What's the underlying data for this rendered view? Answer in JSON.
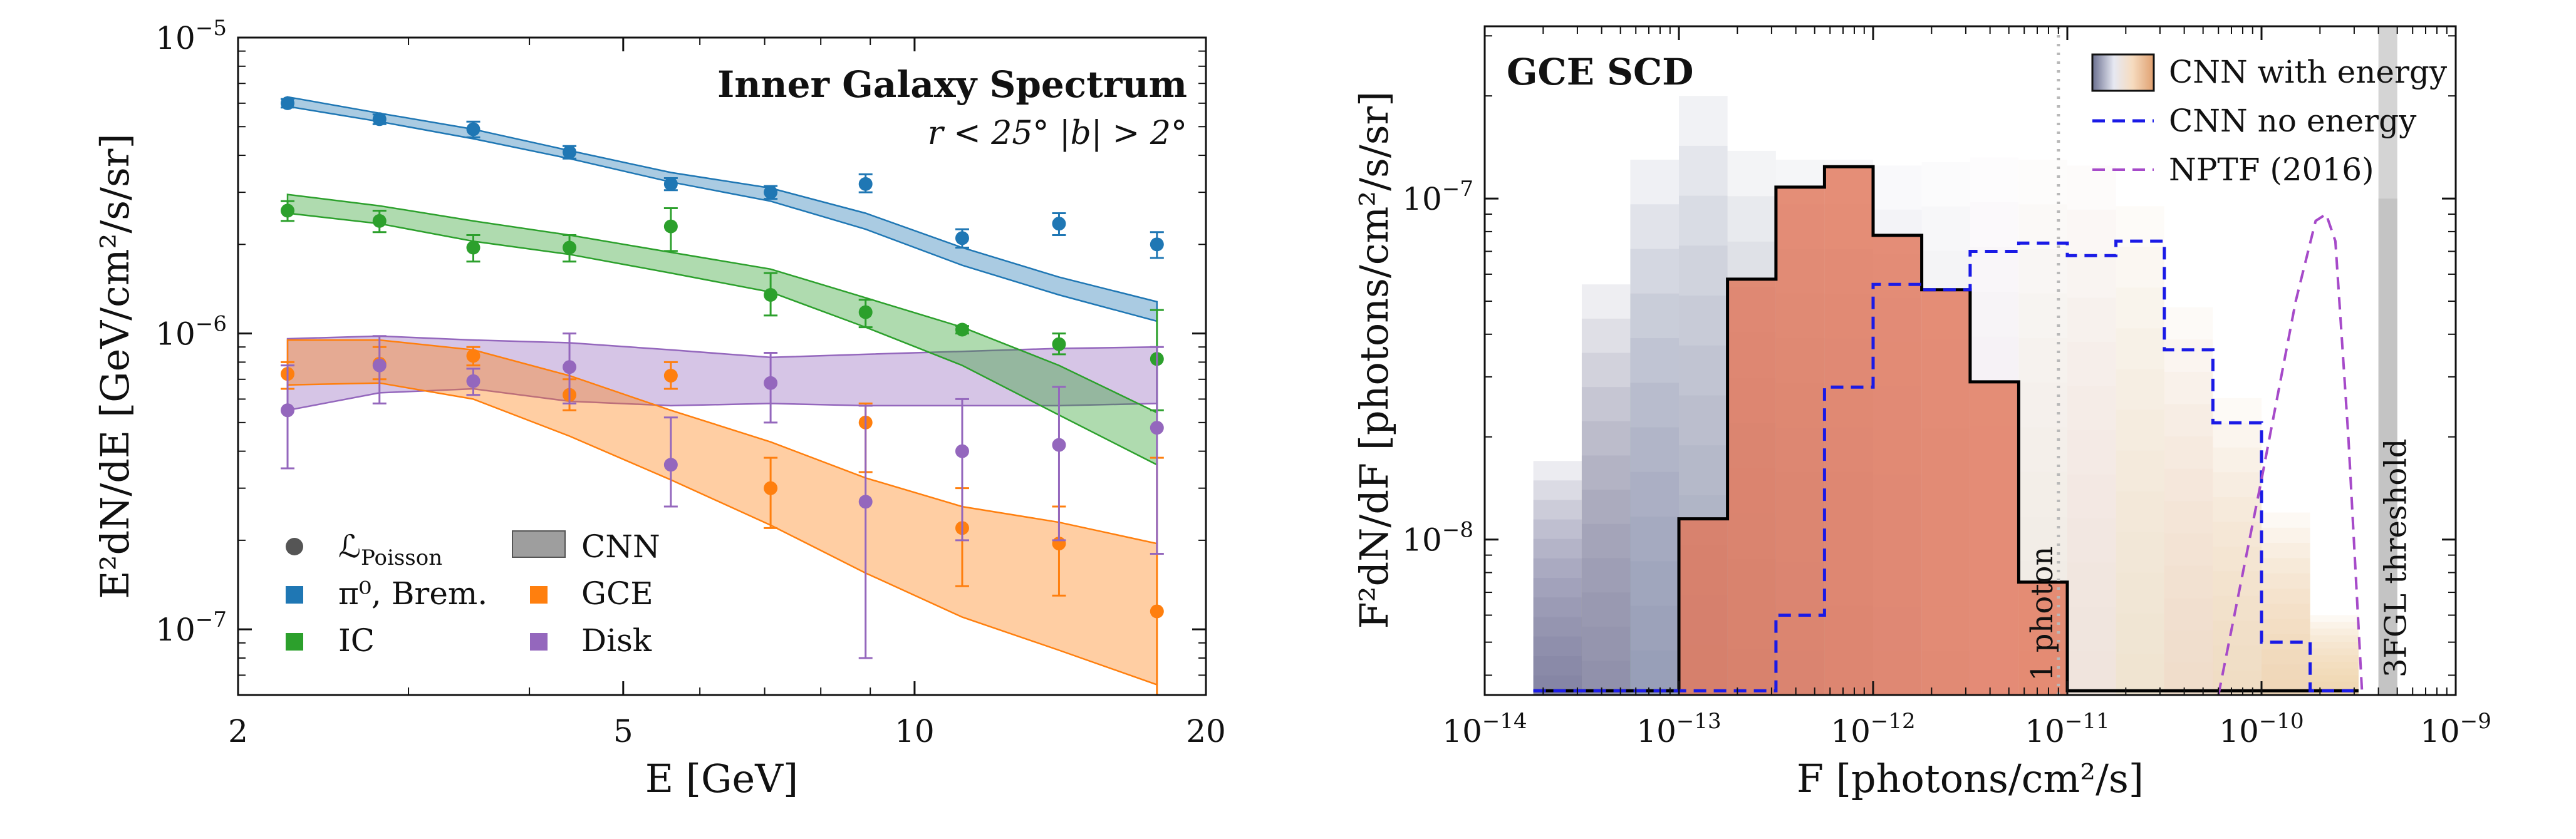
{
  "colors": {
    "pib": "#1f77b4",
    "ic": "#2ca02c",
    "gce": "#ff7f0e",
    "disk": "#9467bd",
    "cnn": "#9e9e9e",
    "no_energy": "#1a1ae6",
    "nptf": "#a64ac9",
    "black": "#000000",
    "threshold": "#c8c8c8"
  },
  "chart_data": [
    {
      "type": "line",
      "title": "Inner Galaxy Spectrum",
      "subtitle": "r < 25°   |b| > 2°",
      "xlabel": "E [GeV]",
      "ylabel": "E²dN/dE [GeV/cm²/s/sr]",
      "xscale": "log",
      "yscale": "log",
      "xlim": [
        2,
        20
      ],
      "ylim": [
        6e-08,
        1e-05
      ],
      "xticks": [
        {
          "value": 2,
          "label": "2"
        },
        {
          "value": 5,
          "label": "5"
        },
        {
          "value": 10,
          "label": "10"
        },
        {
          "value": 20,
          "label": "20"
        }
      ],
      "yticks": [
        {
          "value": 1e-07,
          "base": "10",
          "exp": "−7"
        },
        {
          "value": 1e-06,
          "base": "10",
          "exp": "−6"
        },
        {
          "value": 1e-05,
          "base": "10",
          "exp": "−5"
        }
      ],
      "legend": {
        "position": "bottom-left",
        "entries": [
          {
            "marker": "circle",
            "label": "ℒ",
            "sub": "Poisson",
            "color": "#555555"
          },
          {
            "marker": "square",
            "label": "π⁰, Brem.",
            "color": "#1f77b4"
          },
          {
            "marker": "square",
            "label": "IC",
            "color": "#2ca02c"
          },
          {
            "marker": "band",
            "label": "CNN",
            "color": "#9e9e9e"
          },
          {
            "marker": "square",
            "label": "GCE",
            "color": "#ff7f0e"
          },
          {
            "marker": "square",
            "label": "Disk",
            "color": "#9467bd"
          }
        ]
      },
      "series": [
        {
          "name": "π⁰, Brem.",
          "color": "#1f77b4",
          "points": [
            {
              "x": 2.25,
              "y": 6e-06,
              "lo": 5.8e-06,
              "hi": 6.2e-06
            },
            {
              "x": 2.8,
              "y": 5.3e-06,
              "lo": 5.1e-06,
              "hi": 5.5e-06
            },
            {
              "x": 3.5,
              "y": 4.9e-06,
              "lo": 4.6e-06,
              "hi": 5.2e-06
            },
            {
              "x": 4.4,
              "y": 4.1e-06,
              "lo": 3.9e-06,
              "hi": 4.3e-06
            },
            {
              "x": 5.6,
              "y": 3.2e-06,
              "lo": 3.05e-06,
              "hi": 3.35e-06
            },
            {
              "x": 7.1,
              "y": 3e-06,
              "lo": 2.85e-06,
              "hi": 3.15e-06
            },
            {
              "x": 8.9,
              "y": 3.2e-06,
              "lo": 3e-06,
              "hi": 3.45e-06
            },
            {
              "x": 11.2,
              "y": 2.1e-06,
              "lo": 1.95e-06,
              "hi": 2.25e-06
            },
            {
              "x": 14.1,
              "y": 2.35e-06,
              "lo": 2.15e-06,
              "hi": 2.55e-06
            },
            {
              "x": 17.8,
              "y": 2e-06,
              "lo": 1.8e-06,
              "hi": 2.2e-06
            }
          ],
          "band": {
            "x": [
              2.25,
              2.8,
              3.5,
              4.4,
              5.6,
              7.1,
              8.9,
              11.2,
              14.1,
              17.8
            ],
            "lo": [
              5.85e-06,
              5.2e-06,
              4.55e-06,
              3.9e-06,
              3.25e-06,
              2.8e-06,
              2.25e-06,
              1.7e-06,
              1.35e-06,
              1.1e-06
            ],
            "hi": [
              6.3e-06,
              5.55e-06,
              4.9e-06,
              4.15e-06,
              3.5e-06,
              3.1e-06,
              2.55e-06,
              1.95e-06,
              1.55e-06,
              1.28e-06
            ]
          }
        },
        {
          "name": "IC",
          "color": "#2ca02c",
          "points": [
            {
              "x": 2.25,
              "y": 2.6e-06,
              "lo": 2.4e-06,
              "hi": 2.8e-06
            },
            {
              "x": 2.8,
              "y": 2.4e-06,
              "lo": 2.2e-06,
              "hi": 2.6e-06
            },
            {
              "x": 3.5,
              "y": 1.95e-06,
              "lo": 1.75e-06,
              "hi": 2.15e-06
            },
            {
              "x": 4.4,
              "y": 1.95e-06,
              "lo": 1.75e-06,
              "hi": 2.15e-06
            },
            {
              "x": 5.6,
              "y": 2.3e-06,
              "lo": 1.9e-06,
              "hi": 2.65e-06
            },
            {
              "x": 7.1,
              "y": 1.35e-06,
              "lo": 1.15e-06,
              "hi": 1.6e-06
            },
            {
              "x": 8.9,
              "y": 1.18e-06,
              "lo": 1.05e-06,
              "hi": 1.3e-06
            },
            {
              "x": 11.2,
              "y": 1.03e-06,
              "lo": 1e-06,
              "hi": 1.06e-06
            },
            {
              "x": 14.1,
              "y": 9.2e-07,
              "lo": 8.5e-07,
              "hi": 1e-06
            },
            {
              "x": 17.8,
              "y": 8.2e-07,
              "lo": 5.5e-07,
              "hi": 1.2e-06
            }
          ],
          "band": {
            "x": [
              2.25,
              2.8,
              3.5,
              4.4,
              5.6,
              7.1,
              8.9,
              11.2,
              14.1,
              17.8
            ],
            "lo": [
              2.55e-06,
              2.35e-06,
              2.05e-06,
              1.85e-06,
              1.6e-06,
              1.38e-06,
              1.05e-06,
              7.8e-07,
              5.3e-07,
              3.6e-07
            ],
            "hi": [
              2.95e-06,
              2.7e-06,
              2.4e-06,
              2.15e-06,
              1.88e-06,
              1.65e-06,
              1.32e-06,
              1.05e-06,
              7.8e-07,
              5.4e-07
            ]
          }
        },
        {
          "name": "GCE",
          "color": "#ff7f0e",
          "points": [
            {
              "x": 2.25,
              "y": 7.3e-07,
              "lo": 6.5e-07,
              "hi": 8e-07
            },
            {
              "x": 2.8,
              "y": 7.9e-07,
              "lo": 7e-07,
              "hi": 9e-07
            },
            {
              "x": 3.5,
              "y": 8.4e-07,
              "lo": 7.8e-07,
              "hi": 9e-07
            },
            {
              "x": 4.4,
              "y": 6.2e-07,
              "lo": 5.5e-07,
              "hi": 7e-07
            },
            {
              "x": 5.6,
              "y": 7.2e-07,
              "lo": 6.5e-07,
              "hi": 8e-07
            },
            {
              "x": 7.1,
              "y": 3e-07,
              "lo": 2.2e-07,
              "hi": 3.8e-07
            },
            {
              "x": 8.9,
              "y": 5e-07,
              "lo": 3.4e-07,
              "hi": 5.8e-07
            },
            {
              "x": 11.2,
              "y": 2.2e-07,
              "lo": 1.4e-07,
              "hi": 3e-07
            },
            {
              "x": 14.1,
              "y": 1.95e-07,
              "lo": 1.3e-07,
              "hi": 2.6e-07
            },
            {
              "x": 17.8,
              "y": 1.15e-07,
              "lo": 6e-08,
              "hi": 3.8e-07
            }
          ],
          "band": {
            "x": [
              2.25,
              2.8,
              3.5,
              4.4,
              5.6,
              7.1,
              8.9,
              11.2,
              14.1,
              17.8
            ],
            "lo": [
              6.7e-07,
              6.8e-07,
              6e-07,
              4.5e-07,
              3.2e-07,
              2.25e-07,
              1.55e-07,
              1.1e-07,
              8.5e-08,
              6.5e-08
            ],
            "hi": [
              9.5e-07,
              9.5e-07,
              8.8e-07,
              7.2e-07,
              5.5e-07,
              4.3e-07,
              3.25e-07,
              2.6e-07,
              2.3e-07,
              1.95e-07
            ]
          }
        },
        {
          "name": "Disk",
          "color": "#9467bd",
          "points": [
            {
              "x": 2.25,
              "y": 5.5e-07,
              "lo": 3.5e-07,
              "hi": 7.8e-07
            },
            {
              "x": 2.8,
              "y": 7.8e-07,
              "lo": 5.8e-07,
              "hi": 9.8e-07
            },
            {
              "x": 3.5,
              "y": 6.9e-07,
              "lo": 6.2e-07,
              "hi": 7.6e-07
            },
            {
              "x": 4.4,
              "y": 7.7e-07,
              "lo": 5.8e-07,
              "hi": 1e-06
            },
            {
              "x": 5.6,
              "y": 3.6e-07,
              "lo": 2.6e-07,
              "hi": 5.2e-07
            },
            {
              "x": 7.1,
              "y": 6.8e-07,
              "lo": 5e-07,
              "hi": 8.6e-07
            },
            {
              "x": 8.9,
              "y": 2.7e-07,
              "lo": 8e-08,
              "hi": 5.7e-07
            },
            {
              "x": 11.2,
              "y": 4e-07,
              "lo": 2e-07,
              "hi": 6e-07
            },
            {
              "x": 14.1,
              "y": 4.2e-07,
              "lo": 2e-07,
              "hi": 6.6e-07
            },
            {
              "x": 17.8,
              "y": 4.8e-07,
              "lo": 1.8e-07,
              "hi": 9e-07
            }
          ],
          "band": {
            "x": [
              2.25,
              2.8,
              3.5,
              4.4,
              5.6,
              7.1,
              8.9,
              11.2,
              14.1,
              17.8
            ],
            "lo": [
              5.5e-07,
              6.3e-07,
              6.5e-07,
              5.9e-07,
              5.7e-07,
              5.8e-07,
              5.7e-07,
              5.7e-07,
              5.7e-07,
              5.8e-07
            ],
            "hi": [
              9.6e-07,
              9.8e-07,
              9.5e-07,
              9.3e-07,
              8.8e-07,
              8.3e-07,
              8.5e-07,
              8.7e-07,
              8.9e-07,
              9e-07
            ]
          }
        }
      ]
    },
    {
      "type": "histogram",
      "title": "GCE SCD",
      "xlabel": "F [photons/cm²/s]",
      "ylabel": "F²dN/dF [photons/cm²/s/sr]",
      "xscale": "log",
      "yscale": "log",
      "xlim": [
        1e-14,
        1e-09
      ],
      "ylim": [
        3.5e-09,
        3.2e-07
      ],
      "xticks": [
        {
          "value": 1e-14,
          "base": "10",
          "exp": "−14"
        },
        {
          "value": 1e-13,
          "base": "10",
          "exp": "−13"
        },
        {
          "value": 1e-12,
          "base": "10",
          "exp": "−12"
        },
        {
          "value": 1e-11,
          "base": "10",
          "exp": "−11"
        },
        {
          "value": 1e-10,
          "base": "10",
          "exp": "−10"
        },
        {
          "value": 1e-09,
          "base": "10",
          "exp": "−9"
        }
      ],
      "yticks": [
        {
          "value": 1e-08,
          "base": "10",
          "exp": "−8"
        },
        {
          "value": 1e-07,
          "base": "10",
          "exp": "−7"
        }
      ],
      "bin_edges": [
        1.78e-14,
        3.16e-14,
        5.62e-14,
        1e-13,
        1.78e-13,
        3.16e-13,
        5.62e-13,
        1e-12,
        1.78e-12,
        3.16e-12,
        5.62e-12,
        1e-11,
        1.78e-11,
        3.16e-11,
        5.62e-11,
        1e-10,
        1.78e-10,
        3.16e-10
      ],
      "cnn_with_energy": {
        "label": "CNN with energy",
        "median": [
          3.6e-09,
          3.6e-09,
          3.6e-09,
          1.15e-08,
          5.8e-08,
          1.08e-07,
          1.24e-07,
          7.8e-08,
          5.4e-08,
          2.9e-08,
          7.5e-09,
          3.6e-09,
          3.6e-09,
          3.6e-09,
          3.6e-09,
          3.6e-09,
          3.6e-09
        ],
        "upper": [
          1.7e-08,
          5.6e-08,
          1.3e-07,
          2e-07,
          1.38e-07,
          1.3e-07,
          1.3e-07,
          1.25e-07,
          1.28e-07,
          1.32e-07,
          1.3e-07,
          1.25e-07,
          9.5e-08,
          4.8e-08,
          2.6e-08,
          1.2e-08,
          6e-09
        ]
      },
      "cnn_no_energy": {
        "label": "CNN no energy",
        "values": [
          3.6e-09,
          3.6e-09,
          3.6e-09,
          3.6e-09,
          3.6e-09,
          6e-09,
          2.8e-08,
          5.6e-08,
          5.4e-08,
          7e-08,
          7.4e-08,
          6.8e-08,
          7.5e-08,
          3.6e-08,
          2.2e-08,
          5e-09,
          3.6e-09
        ]
      },
      "nptf_2016": {
        "label": "NPTF (2016)",
        "x": [
          6e-11,
          1e-10,
          1.5e-10,
          1.9e-10,
          2.15e-10,
          2.4e-10,
          2.8e-10,
          3.3e-10
        ],
        "y": [
          3.5e-09,
          1.5e-08,
          5e-08,
          8.6e-08,
          9e-08,
          7.5e-08,
          2e-08,
          3.5e-09
        ]
      },
      "one_photon_line": {
        "x": 9e-12,
        "label": "1 photon"
      },
      "threshold_3fgl": {
        "x_lo": 4e-10,
        "x_hi": 5e-10,
        "bright_from": 1e-07,
        "label": "3FGL threshold"
      },
      "legend": {
        "position": "top-right",
        "entries": [
          {
            "marker": "gradient-box",
            "label": "CNN with energy"
          },
          {
            "marker": "dashed-line",
            "label": "CNN no energy",
            "color": "#1a1ae6"
          },
          {
            "marker": "dashed-line",
            "label": "NPTF (2016)",
            "color": "#a64ac9"
          }
        ]
      }
    }
  ]
}
